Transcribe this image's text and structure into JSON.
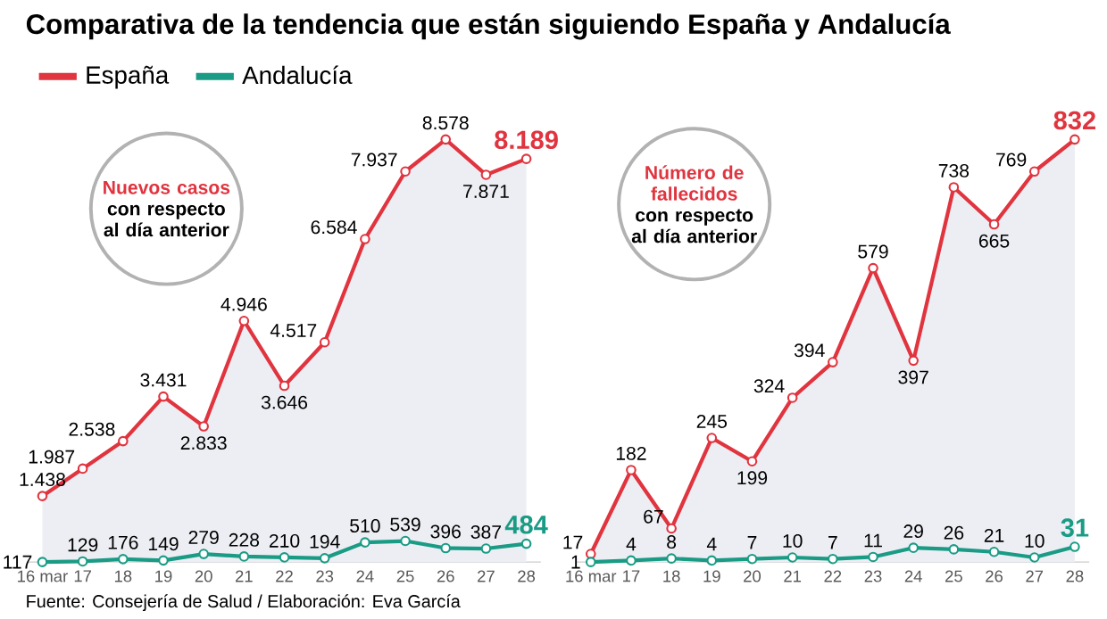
{
  "chart_data": [
    {
      "type": "line",
      "title": "Comparativa de la tendencia que están siguiendo España y Andalucía",
      "categories": [
        "16 mar",
        "17",
        "18",
        "19",
        "20",
        "21",
        "22",
        "23",
        "24",
        "25",
        "26",
        "27",
        "28"
      ],
      "legend": "top left",
      "marker": "circle",
      "tick_labels": "x",
      "annotations": [
        "Nuevos casos",
        "con respecto al día anterior",
        "Fuente: Consejería de Salud / Elaboración: Eva García"
      ],
      "series": [
        {
          "name": "España",
          "type": "area",
          "color": "#e0343f",
          "values": [
            1438,
            1987,
            2538,
            3431,
            2833,
            4946,
            3646,
            4517,
            6584,
            7937,
            8578,
            7871,
            8189
          ],
          "value_labels": [
            "1.438",
            "1.987",
            "2.538",
            "3.431",
            "2.833",
            "4.946",
            "3.646",
            "4.517",
            "6.584",
            "7.937",
            "8.578",
            "7.871",
            "8.189"
          ]
        },
        {
          "name": "Andalucía",
          "color": "#1a9b85",
          "values": [
            117,
            129,
            176,
            149,
            279,
            228,
            210,
            194,
            510,
            539,
            396,
            387,
            484
          ],
          "value_labels": [
            "117",
            "129",
            "176",
            "149",
            "279",
            "228",
            "210",
            "194",
            "510",
            "539",
            "396",
            "387",
            "484"
          ]
        }
      ]
    },
    {
      "type": "line",
      "categories": [
        "16 mar",
        "17",
        "18",
        "19",
        "20",
        "21",
        "22",
        "23",
        "24",
        "25",
        "26",
        "27",
        "28"
      ],
      "marker": "circle",
      "tick_labels": "x",
      "annotations": [
        "Número de fallecidos",
        "con respecto al día anterior"
      ],
      "series": [
        {
          "type": "area",
          "color": "#e0343f",
          "values": [
            17,
            182,
            67,
            245,
            199,
            324,
            394,
            579,
            397,
            738,
            665,
            769,
            832
          ],
          "value_labels": [
            "17",
            "182",
            "67",
            "245",
            "199",
            "324",
            "394",
            "579",
            "397",
            "738",
            "665",
            "769",
            "832"
          ]
        },
        {
          "color": "#1a9b85",
          "values": [
            1,
            4,
            8,
            4,
            7,
            10,
            7,
            11,
            29,
            26,
            21,
            10,
            31
          ],
          "value_labels": [
            "1",
            "4",
            "8",
            "4",
            "7",
            "10",
            "7",
            "11",
            "29",
            "26",
            "21",
            "10",
            "31"
          ]
        }
      ]
    }
  ]
}
